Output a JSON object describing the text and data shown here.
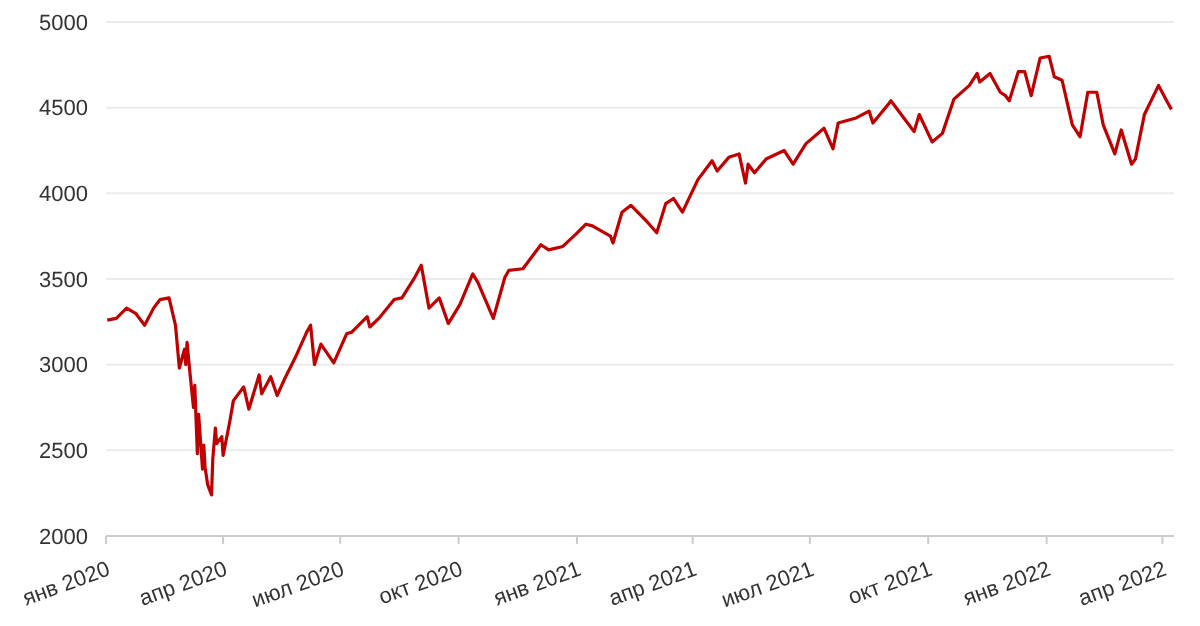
{
  "chart_data": {
    "type": "line",
    "x": [
      "2020-01-02",
      "2020-01-09",
      "2020-01-17",
      "2020-01-24",
      "2020-01-31",
      "2020-02-07",
      "2020-02-12",
      "2020-02-19",
      "2020-02-24",
      "2020-02-27",
      "2020-03-02",
      "2020-03-03",
      "2020-03-04",
      "2020-03-06",
      "2020-03-09",
      "2020-03-10",
      "2020-03-12",
      "2020-03-13",
      "2020-03-16",
      "2020-03-17",
      "2020-03-18",
      "2020-03-20",
      "2020-03-23",
      "2020-03-24",
      "2020-03-26",
      "2020-03-27",
      "2020-03-31",
      "2020-04-01",
      "2020-04-06",
      "2020-04-09",
      "2020-04-17",
      "2020-04-21",
      "2020-04-29",
      "2020-05-01",
      "2020-05-08",
      "2020-05-13",
      "2020-05-19",
      "2020-05-27",
      "2020-06-05",
      "2020-06-08",
      "2020-06-11",
      "2020-06-16",
      "2020-06-26",
      "2020-07-06",
      "2020-07-10",
      "2020-07-22",
      "2020-07-24",
      "2020-07-31",
      "2020-08-12",
      "2020-08-18",
      "2020-08-28",
      "2020-09-02",
      "2020-09-08",
      "2020-09-16",
      "2020-09-23",
      "2020-10-02",
      "2020-10-12",
      "2020-10-16",
      "2020-10-28",
      "2020-11-06",
      "2020-11-09",
      "2020-11-20",
      "2020-12-04",
      "2020-12-10",
      "2020-12-21",
      "2020-12-31",
      "2021-01-08",
      "2021-01-13",
      "2021-01-27",
      "2021-01-29",
      "2021-02-05",
      "2021-02-12",
      "2021-02-25",
      "2021-03-04",
      "2021-03-11",
      "2021-03-17",
      "2021-03-24",
      "2021-04-05",
      "2021-04-16",
      "2021-04-20",
      "2021-04-29",
      "2021-05-07",
      "2021-05-12",
      "2021-05-14",
      "2021-05-19",
      "2021-05-28",
      "2021-06-11",
      "2021-06-18",
      "2021-06-28",
      "2021-07-12",
      "2021-07-19",
      "2021-07-23",
      "2021-08-06",
      "2021-08-16",
      "2021-08-19",
      "2021-08-31",
      "2021-09-02",
      "2021-09-10",
      "2021-09-20",
      "2021-09-24",
      "2021-10-04",
      "2021-10-12",
      "2021-10-21",
      "2021-11-02",
      "2021-11-08",
      "2021-11-10",
      "2021-11-18",
      "2021-11-26",
      "2021-11-30",
      "2021-12-03",
      "2021-12-10",
      "2021-12-15",
      "2021-12-20",
      "2021-12-27",
      "2022-01-03",
      "2022-01-07",
      "2022-01-13",
      "2022-01-21",
      "2022-01-27",
      "2022-02-02",
      "2022-02-09",
      "2022-02-14",
      "2022-02-23",
      "2022-02-28",
      "2022-03-08",
      "2022-03-11",
      "2022-03-18",
      "2022-03-29",
      "2022-04-05",
      "2022-04-08"
    ],
    "series": [
      {
        "color": "#c00000",
        "values": [
          3260,
          3270,
          3330,
          3300,
          3230,
          3330,
          3380,
          3390,
          3230,
          2980,
          3090,
          3000,
          3130,
          2970,
          2750,
          2880,
          2480,
          2710,
          2390,
          2530,
          2400,
          2300,
          2240,
          2450,
          2630,
          2540,
          2580,
          2470,
          2660,
          2790,
          2870,
          2740,
          2940,
          2830,
          2930,
          2820,
          2920,
          3040,
          3190,
          3230,
          3000,
          3120,
          3010,
          3180,
          3190,
          3280,
          3220,
          3270,
          3380,
          3390,
          3510,
          3580,
          3330,
          3390,
          3240,
          3350,
          3530,
          3480,
          3270,
          3510,
          3550,
          3560,
          3700,
          3670,
          3690,
          3760,
          3820,
          3810,
          3750,
          3710,
          3890,
          3930,
          3830,
          3770,
          3940,
          3970,
          3890,
          4080,
          4190,
          4130,
          4210,
          4230,
          4060,
          4170,
          4120,
          4200,
          4250,
          4170,
          4290,
          4380,
          4260,
          4410,
          4440,
          4480,
          4410,
          4520,
          4540,
          4460,
          4360,
          4460,
          4300,
          4350,
          4550,
          4630,
          4700,
          4650,
          4700,
          4590,
          4570,
          4540,
          4710,
          4710,
          4570,
          4790,
          4800,
          4680,
          4660,
          4400,
          4330,
          4590,
          4590,
          4400,
          4230,
          4370,
          4170,
          4200,
          4460,
          4630,
          4530,
          4490
        ]
      }
    ],
    "xlim": [
      "2020-01-01",
      "2022-04-10"
    ],
    "xticks": [
      {
        "value": "2020-01-01",
        "label": "янв 2020"
      },
      {
        "value": "2020-04-01",
        "label": "апр 2020"
      },
      {
        "value": "2020-07-01",
        "label": "июл 2020"
      },
      {
        "value": "2020-10-01",
        "label": "окт 2020"
      },
      {
        "value": "2021-01-01",
        "label": "янв 2021"
      },
      {
        "value": "2021-04-01",
        "label": "апр 2021"
      },
      {
        "value": "2021-07-01",
        "label": "июл 2021"
      },
      {
        "value": "2021-10-01",
        "label": "окт 2021"
      },
      {
        "value": "2022-01-01",
        "label": "янв 2022"
      },
      {
        "value": "2022-04-01",
        "label": "апр 2022"
      }
    ],
    "ylim": [
      2000,
      5000
    ],
    "yticks": [
      2000,
      2500,
      3000,
      3500,
      4000,
      4500,
      5000
    ],
    "grid": "y",
    "marker": "none",
    "line_style": "solid"
  }
}
